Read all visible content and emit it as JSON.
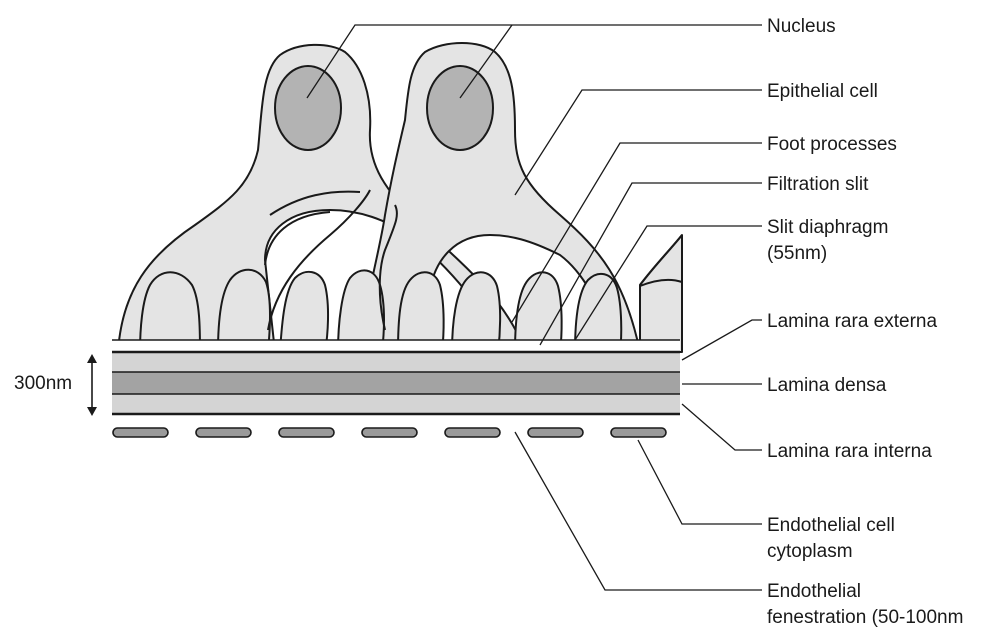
{
  "labels": {
    "nucleus": "Nucleus",
    "epithelial_cell": "Epithelial cell",
    "foot_processes": "Foot processes",
    "filtration_slit": "Filtration slit",
    "slit_diaphragm_line1": "Slit diaphragm",
    "slit_diaphragm_line2": "(55nm)",
    "lamina_rara_externa": "Lamina rara externa",
    "lamina_densa": "Lamina densa",
    "lamina_rara_interna": "Lamina rara interna",
    "endothelial_cytoplasm_line1": "Endothelial cell",
    "endothelial_cytoplasm_line2": "cytoplasm",
    "endothelial_fenestration_line1": "Endothelial",
    "endothelial_fenestration_line2": "fenestration (50-100nm",
    "thickness": "300nm"
  },
  "colors": {
    "cell_fill": "#e4e4e4",
    "nucleus_fill": "#b3b3b3",
    "lamina_rara": "#d4d4d4",
    "lamina_densa": "#a3a3a3"
  }
}
